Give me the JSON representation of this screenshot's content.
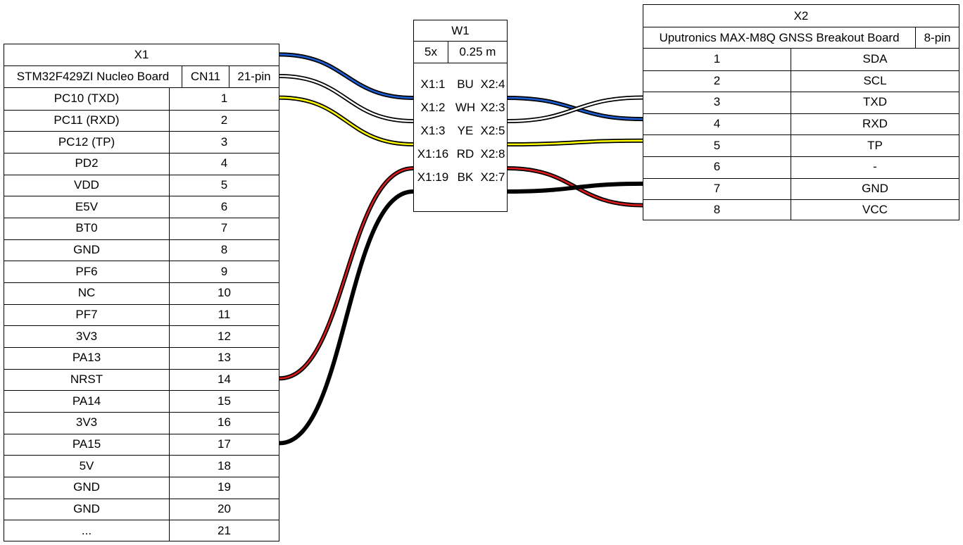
{
  "x1": {
    "title": "X1",
    "subtitle": "STM32F429ZI Nucleo Board",
    "connector": "CN11",
    "pincount": "21-pin",
    "pins": [
      {
        "label": "PC10 (TXD)",
        "num": "1"
      },
      {
        "label": "PC11 (RXD)",
        "num": "2"
      },
      {
        "label": "PC12 (TP)",
        "num": "3"
      },
      {
        "label": "PD2",
        "num": "4"
      },
      {
        "label": "VDD",
        "num": "5"
      },
      {
        "label": "E5V",
        "num": "6"
      },
      {
        "label": "BT0",
        "num": "7"
      },
      {
        "label": "GND",
        "num": "8"
      },
      {
        "label": "PF6",
        "num": "9"
      },
      {
        "label": "NC",
        "num": "10"
      },
      {
        "label": "PF7",
        "num": "11"
      },
      {
        "label": "3V3",
        "num": "12"
      },
      {
        "label": "PA13",
        "num": "13"
      },
      {
        "label": "NRST",
        "num": "14"
      },
      {
        "label": "PA14",
        "num": "15"
      },
      {
        "label": "3V3",
        "num": "16"
      },
      {
        "label": "PA15",
        "num": "17"
      },
      {
        "label": "5V",
        "num": "18"
      },
      {
        "label": "GND",
        "num": "19"
      },
      {
        "label": "GND",
        "num": "20"
      },
      {
        "label": "...",
        "num": "21"
      }
    ]
  },
  "w1": {
    "title": "W1",
    "count": "5x",
    "length": "0.25 m",
    "wires": [
      {
        "from": "X1:1",
        "color": "BU",
        "to": "X2:4",
        "fill": "#1f5fd6"
      },
      {
        "from": "X1:2",
        "color": "WH",
        "to": "X2:3",
        "fill": "#ffffff"
      },
      {
        "from": "X1:3",
        "color": "YE",
        "to": "X2:5",
        "fill": "#ffff00"
      },
      {
        "from": "X1:16",
        "color": "RD",
        "to": "X2:8",
        "fill": "#e11a1a"
      },
      {
        "from": "X1:19",
        "color": "BK",
        "to": "X2:7",
        "fill": "#000000"
      }
    ]
  },
  "x2": {
    "title": "X2",
    "subtitle": "Uputronics MAX-M8Q GNSS Breakout Board",
    "pincount": "8-pin",
    "pins": [
      {
        "num": "1",
        "label": "SDA"
      },
      {
        "num": "2",
        "label": "SCL"
      },
      {
        "num": "3",
        "label": "TXD"
      },
      {
        "num": "4",
        "label": "RXD"
      },
      {
        "num": "5",
        "label": "TP"
      },
      {
        "num": "6",
        "label": "-"
      },
      {
        "num": "7",
        "label": "GND"
      },
      {
        "num": "8",
        "label": "VCC"
      }
    ]
  }
}
